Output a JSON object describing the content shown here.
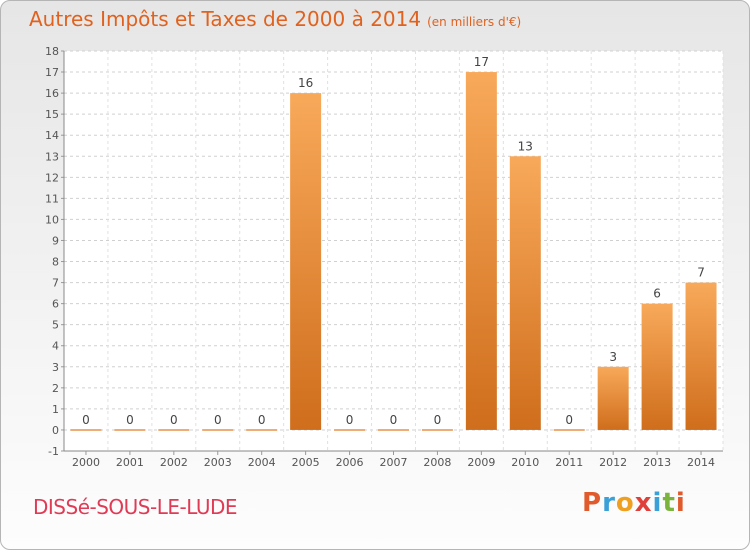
{
  "header": {
    "title": "Autres Impôts et Taxes de 2000 à 2014",
    "subtitle": "(en milliers d'€)"
  },
  "footer": {
    "commune": "DISSé-SOUS-LE-LUDE",
    "brand": "Proxiti"
  },
  "colors": {
    "title": "#e0621e",
    "commune": "#e03a55",
    "bar_light": "#f8a95a",
    "bar_dark": "#cf6e1c",
    "brand_letters": [
      "#e05a2b",
      "#3aa0d8",
      "#f0a020",
      "#e0403a",
      "#3aa0d8",
      "#7ab43c",
      "#e05a2b"
    ]
  },
  "chart_data": {
    "type": "bar",
    "categories": [
      "2000",
      "2001",
      "2002",
      "2003",
      "2004",
      "2005",
      "2006",
      "2007",
      "2008",
      "2009",
      "2010",
      "2011",
      "2012",
      "2013",
      "2014"
    ],
    "values": [
      0,
      0,
      0,
      0,
      0,
      16,
      0,
      0,
      0,
      17,
      13,
      0,
      3,
      6,
      7
    ],
    "title": "Autres Impôts et Taxes de 2000 à 2014",
    "xlabel": "",
    "ylabel": "",
    "ylim": [
      -1,
      18
    ],
    "yticks": [
      -1,
      0,
      1,
      2,
      3,
      4,
      5,
      6,
      7,
      8,
      9,
      10,
      11,
      12,
      13,
      14,
      15,
      16,
      17,
      18
    ],
    "grid": true
  }
}
